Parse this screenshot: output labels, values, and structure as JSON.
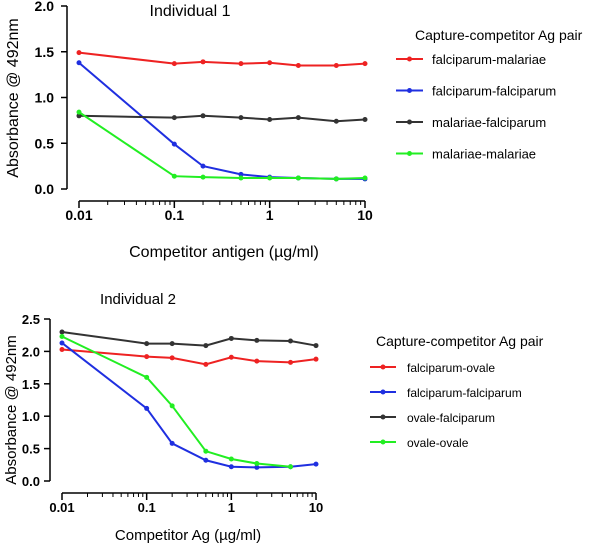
{
  "chart_data": [
    {
      "type": "line",
      "title": "Individual 1",
      "xlabel": "Competitor antigen (µg/ml)",
      "ylabel": "Absorbance @ 492nm",
      "xscale": "log",
      "xlim": [
        0.01,
        10
      ],
      "ylim": [
        0,
        2.0
      ],
      "xticks": [
        "0.01",
        "0.1",
        "1",
        "10"
      ],
      "xtick_values": [
        0.01,
        0.1,
        1,
        10
      ],
      "yticks": [
        "0.0",
        "0.5",
        "1.0",
        "1.5",
        "2.0"
      ],
      "ytick_values": [
        0,
        0.5,
        1.0,
        1.5,
        2.0
      ],
      "legend_title": "Capture-competitor Ag pair",
      "legend_position": "right",
      "grid": false,
      "x": [
        0.01,
        0.1,
        0.2,
        0.5,
        1,
        2,
        5,
        10
      ],
      "series": [
        {
          "name": "falciparum-malariae",
          "color": "#ee2222",
          "values": [
            1.49,
            1.37,
            1.39,
            1.37,
            1.38,
            1.35,
            1.35,
            1.37
          ]
        },
        {
          "name": "falciparum-falciparum",
          "color": "#1f2fe0",
          "values": [
            1.38,
            0.49,
            0.25,
            0.16,
            0.13,
            0.12,
            0.11,
            0.11
          ]
        },
        {
          "name": "malariae-falciparum",
          "color": "#333333",
          "values": [
            0.8,
            0.78,
            0.8,
            0.78,
            0.76,
            0.78,
            0.74,
            0.76
          ]
        },
        {
          "name": "malariae-malariae",
          "color": "#22ee22",
          "values": [
            0.84,
            0.14,
            0.13,
            0.12,
            0.12,
            0.12,
            0.11,
            0.12
          ]
        }
      ]
    },
    {
      "type": "line",
      "title": "Individual 2",
      "xlabel": "Competitor Ag (µg/ml)",
      "ylabel": "Absorbance @ 492nm",
      "xscale": "log",
      "xlim": [
        0.01,
        10
      ],
      "ylim": [
        0,
        2.5
      ],
      "xticks": [
        "0.01",
        "0.1",
        "1",
        "10"
      ],
      "xtick_values": [
        0.01,
        0.1,
        1,
        10
      ],
      "yticks": [
        "0.0",
        "0.5",
        "1.0",
        "1.5",
        "2.0",
        "2.5"
      ],
      "ytick_values": [
        0,
        0.5,
        1.0,
        1.5,
        2.0,
        2.5
      ],
      "legend_title": "Capture-competitor Ag pair",
      "legend_position": "right",
      "grid": false,
      "x": [
        0.01,
        0.1,
        0.2,
        0.5,
        1,
        2,
        5,
        10
      ],
      "series": [
        {
          "name": "falciparum-ovale",
          "color": "#ee2222",
          "values": [
            2.03,
            1.92,
            1.9,
            1.8,
            1.91,
            1.85,
            1.83,
            1.88
          ]
        },
        {
          "name": "falciparum-falciparum",
          "color": "#1f2fe0",
          "values": [
            2.13,
            1.12,
            0.58,
            0.32,
            0.22,
            0.21,
            0.22,
            0.26
          ]
        },
        {
          "name": "ovale-falciparum",
          "color": "#333333",
          "values": [
            2.3,
            2.12,
            2.12,
            2.09,
            2.2,
            2.17,
            2.16,
            2.09
          ]
        },
        {
          "name": "ovale-ovale",
          "color": "#22ee22",
          "x": [
            0.01,
            0.1,
            0.2,
            0.5,
            1,
            2,
            5
          ],
          "values": [
            2.23,
            1.6,
            1.16,
            0.46,
            0.34,
            0.27,
            0.22
          ]
        }
      ]
    }
  ]
}
